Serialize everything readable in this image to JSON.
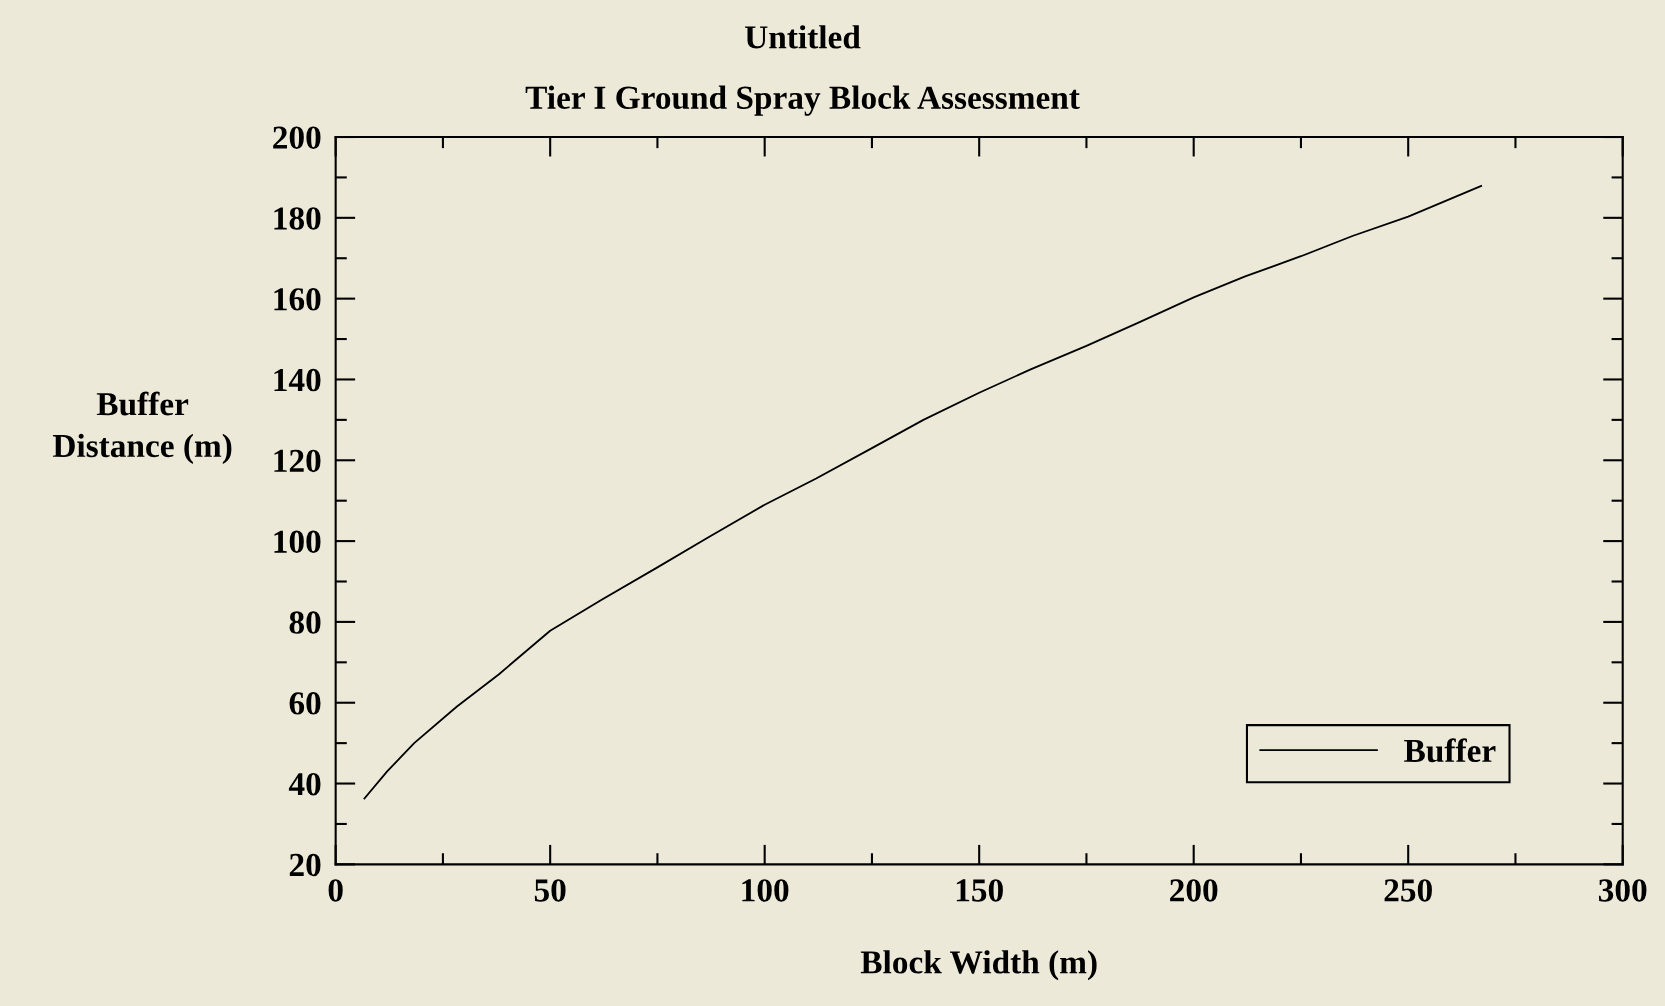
{
  "chart_data": {
    "type": "line",
    "title": "Untitled",
    "subtitle": "Tier I Ground Spray Block Assessment",
    "xlabel": "Block Width (m)",
    "ylabel": "Buffer\nDistance (m)",
    "x": [
      6.7,
      12,
      18.3,
      28.2,
      38,
      50,
      62,
      75,
      87,
      100,
      112,
      125,
      137,
      150,
      162,
      175,
      187,
      200,
      212,
      225,
      237,
      250,
      267
    ],
    "series": [
      {
        "name": "Buffer",
        "color": "#000000",
        "values": [
          36.3,
          43,
          50,
          59,
          67,
          77.8,
          85.5,
          93.5,
          101,
          109,
          115.5,
          123,
          130,
          136.7,
          142.5,
          148.3,
          154,
          160.3,
          165.5,
          170.5,
          175.5,
          180.3,
          187.9
        ]
      }
    ],
    "xlim": [
      0,
      300
    ],
    "ylim": [
      20,
      200
    ],
    "xticks": [
      0,
      {
        "value": 25,
        "label": null
      },
      50,
      {
        "value": 75,
        "label": null
      },
      100,
      {
        "value": 125,
        "label": null
      },
      150,
      {
        "value": 175,
        "label": null
      },
      200,
      {
        "value": 225,
        "label": null
      },
      250,
      {
        "value": 275,
        "label": null
      },
      300
    ],
    "yticks": [
      20,
      {
        "value": 30,
        "label": null
      },
      40,
      {
        "value": 50,
        "label": null
      },
      60,
      {
        "value": 70,
        "label": null
      },
      80,
      {
        "value": 90,
        "label": null
      },
      100,
      {
        "value": 110,
        "label": null
      },
      120,
      {
        "value": 130,
        "label": null
      },
      140,
      {
        "value": 150,
        "label": null
      },
      160,
      {
        "value": 170,
        "label": null
      },
      180,
      {
        "value": 190,
        "label": null
      },
      200
    ],
    "legend": "bottom right",
    "grid": false,
    "marker": "none",
    "line_style": "solid"
  }
}
